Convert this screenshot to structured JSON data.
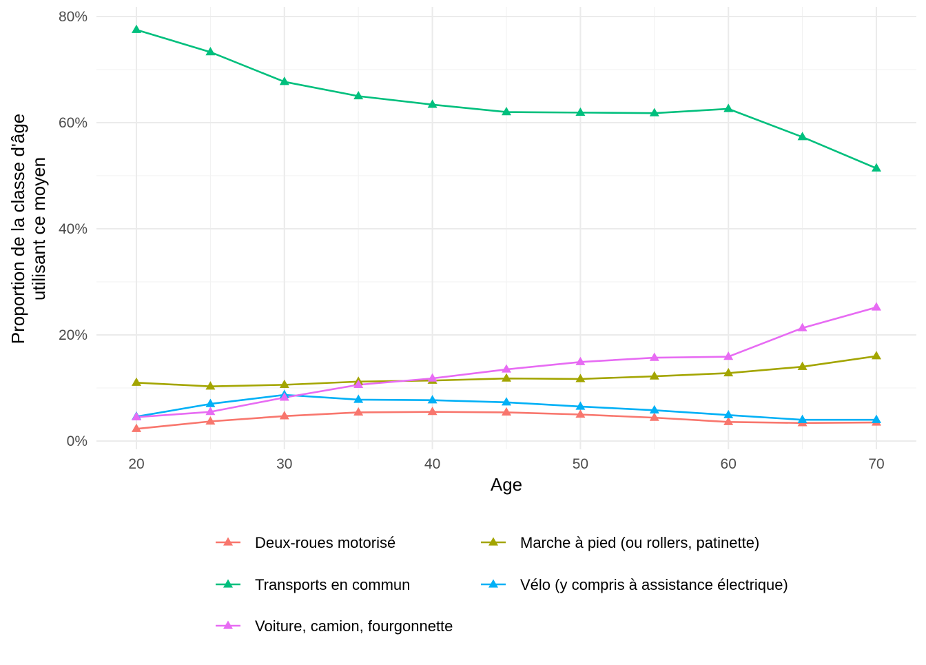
{
  "chart_data": {
    "type": "line",
    "xlabel": "Age",
    "ylabel_lines": [
      "Proportion de la classe d'âge",
      "utilisant ce moyen"
    ],
    "x": [
      20,
      25,
      30,
      35,
      40,
      45,
      50,
      55,
      60,
      65,
      70
    ],
    "xlim": [
      17.3,
      72.7
    ],
    "ylim": [
      0,
      80.5
    ],
    "x_ticks": [
      20,
      30,
      40,
      50,
      60,
      70
    ],
    "y_ticks": [
      0,
      20,
      40,
      60,
      80
    ],
    "y_tick_labels": [
      "0%",
      "20%",
      "40%",
      "60%",
      "80%"
    ],
    "grid": true,
    "legend_position": "bottom",
    "marker": "triangle",
    "series": [
      {
        "name": "Deux-roues motorisé",
        "color": "#F8766D",
        "values": [
          2.3,
          3.7,
          4.7,
          5.4,
          5.5,
          5.4,
          5.0,
          4.4,
          3.6,
          3.4,
          3.5
        ]
      },
      {
        "name": "Marche à pied (ou rollers, patinette)",
        "color": "#A3A500",
        "values": [
          11.0,
          10.3,
          10.6,
          11.2,
          11.4,
          11.8,
          11.7,
          12.2,
          12.8,
          14.0,
          16.0
        ]
      },
      {
        "name": "Transports en commun",
        "color": "#00BF7D",
        "values": [
          77.5,
          73.3,
          67.7,
          65.0,
          63.4,
          62.0,
          61.9,
          61.8,
          62.6,
          57.3,
          51.4
        ]
      },
      {
        "name": "Vélo (y compris à assistance électrique)",
        "color": "#00B0F6",
        "values": [
          4.6,
          7.0,
          8.7,
          7.8,
          7.7,
          7.3,
          6.5,
          5.8,
          4.9,
          4.0,
          4.0
        ]
      },
      {
        "name": "Voiture, camion, fourgonnette",
        "color": "#E76BF3",
        "values": [
          4.5,
          5.5,
          8.2,
          10.6,
          11.8,
          13.5,
          14.9,
          15.7,
          15.9,
          21.3,
          25.2
        ]
      }
    ],
    "legend_order": [
      0,
      1,
      2,
      3,
      4
    ]
  }
}
